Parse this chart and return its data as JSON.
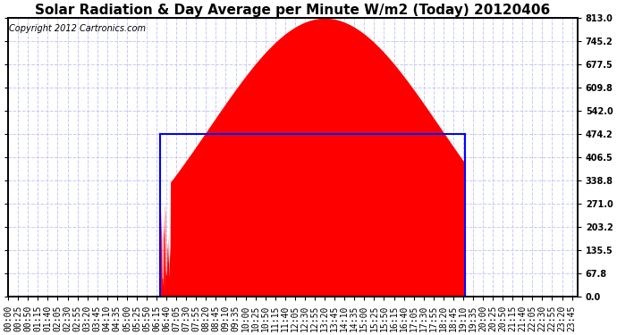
{
  "title": "Solar Radiation & Day Average per Minute W/m2 (Today) 20120406",
  "copyright": "Copyright 2012 Cartronics.com",
  "background_color": "#ffffff",
  "plot_bg_color": "#ffffff",
  "grid_color": "#c8c8ff",
  "y_max": 813.0,
  "y_min": 0.0,
  "y_ticks": [
    0.0,
    67.8,
    135.5,
    203.2,
    271.0,
    338.8,
    406.5,
    474.2,
    542.0,
    609.8,
    677.5,
    745.2,
    813.0
  ],
  "day_avg": 474.2,
  "sunrise_min": 385,
  "sunset_min": 1155,
  "peak_min": 800,
  "peak_val": 813.0,
  "n_points": 1440,
  "red_color": "#ff0000",
  "blue_color": "#0000ff",
  "title_fontsize": 11,
  "copyright_fontsize": 7,
  "tick_fontsize": 7
}
